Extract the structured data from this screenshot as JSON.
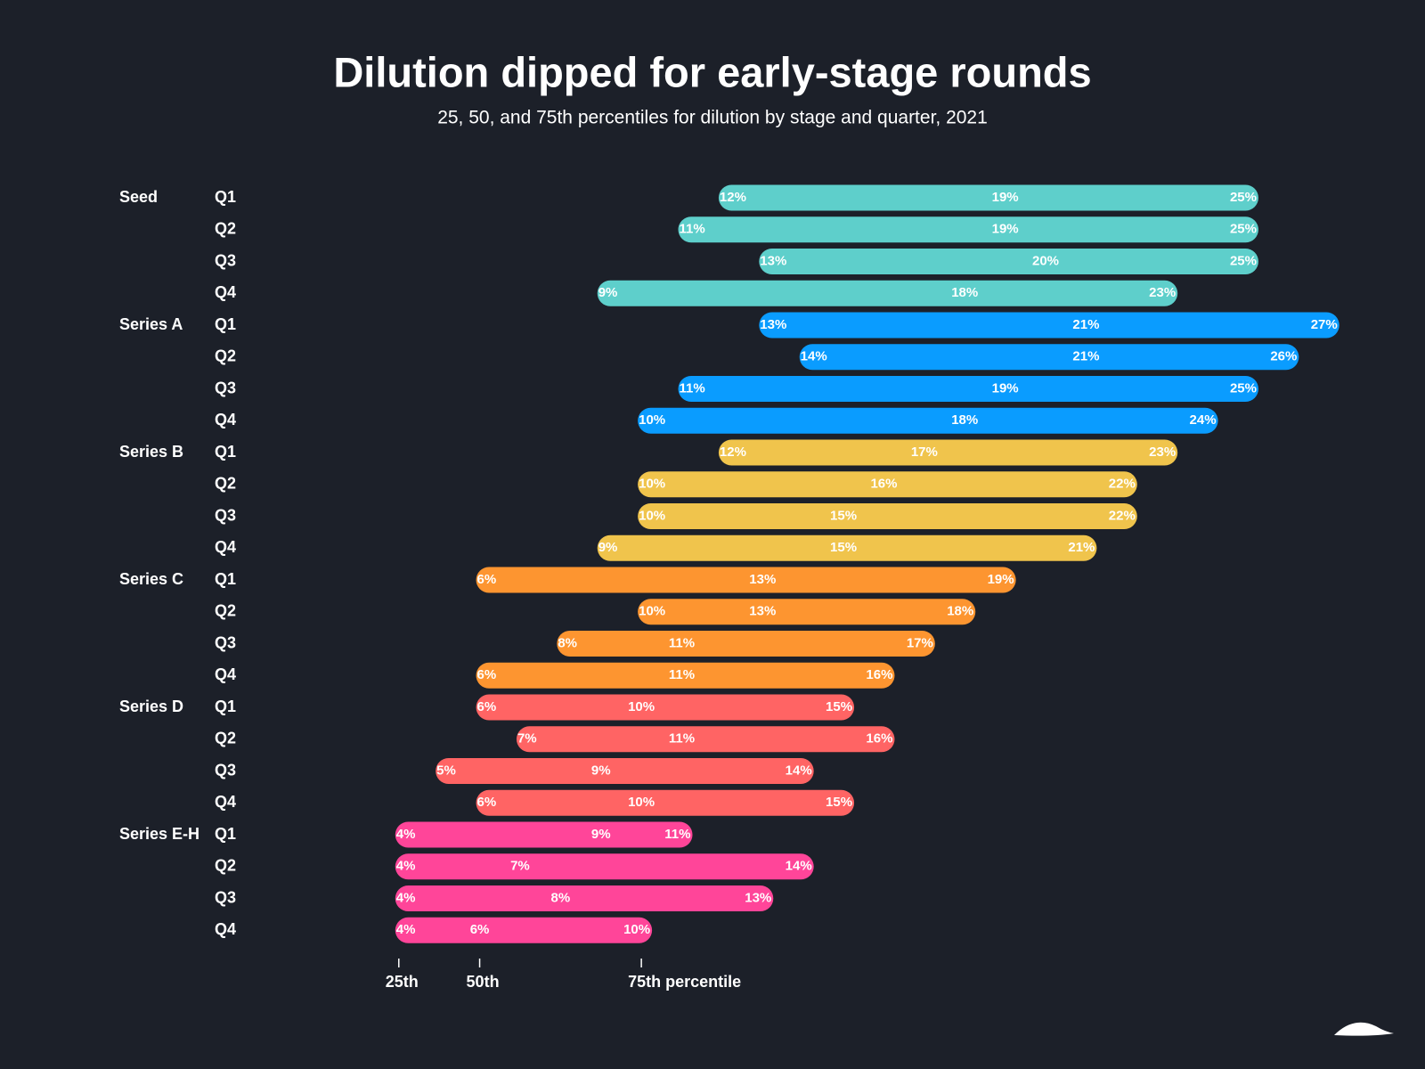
{
  "chart_data": {
    "type": "range",
    "title": "Dilution dipped for early-stage rounds",
    "subtitle": "25, 50, and 75th percentiles for dilution by stage and quarter, 2021",
    "key_labels": [
      "25th",
      "50th",
      "75th percentile"
    ],
    "series": [
      {
        "name": "Seed",
        "color": "#5ecfcb",
        "categories": [
          "Q1",
          "Q2",
          "Q3",
          "Q4"
        ],
        "values": [
          [
            12,
            19,
            25
          ],
          [
            11,
            19,
            25
          ],
          [
            13,
            20,
            25
          ],
          [
            9,
            18,
            23
          ]
        ],
        "value_labels": [
          [
            "12%",
            "19%",
            "25%"
          ],
          [
            "11%",
            "19%",
            "25%"
          ],
          [
            "13%",
            "20%",
            "25%"
          ],
          [
            "9%",
            "18%",
            "23%"
          ]
        ]
      },
      {
        "name": "Series A",
        "color": "#0a9cff",
        "categories": [
          "Q1",
          "Q2",
          "Q3",
          "Q4"
        ],
        "values": [
          [
            13,
            21,
            27
          ],
          [
            14,
            21,
            26
          ],
          [
            11,
            19,
            25
          ],
          [
            10,
            18,
            24
          ]
        ],
        "value_labels": [
          [
            "13%",
            "21%",
            "27%"
          ],
          [
            "14%",
            "21%",
            "26%"
          ],
          [
            "11%",
            "19%",
            "25%"
          ],
          [
            "10%",
            "18%",
            "24%"
          ]
        ]
      },
      {
        "name": "Series B",
        "color": "#f0c44c",
        "categories": [
          "Q1",
          "Q2",
          "Q3",
          "Q4"
        ],
        "values": [
          [
            12,
            17,
            23
          ],
          [
            10,
            16,
            22
          ],
          [
            10,
            15,
            22
          ],
          [
            9,
            15,
            21
          ]
        ],
        "value_labels": [
          [
            "12%",
            "17%",
            "23%"
          ],
          [
            "10%",
            "16%",
            "22%"
          ],
          [
            "10%",
            "15%",
            "22%"
          ],
          [
            "9%",
            "15%",
            "21%"
          ]
        ]
      },
      {
        "name": "Series C",
        "color": "#fd9530",
        "categories": [
          "Q1",
          "Q2",
          "Q3",
          "Q4"
        ],
        "values": [
          [
            6,
            13,
            19
          ],
          [
            10,
            13,
            18
          ],
          [
            8,
            11,
            17
          ],
          [
            6,
            11,
            16
          ]
        ],
        "value_labels": [
          [
            "6%",
            "13%",
            "19%"
          ],
          [
            "10%",
            "13%",
            "18%"
          ],
          [
            "8%",
            "11%",
            "17%"
          ],
          [
            "6%",
            "11%",
            "16%"
          ]
        ]
      },
      {
        "name": "Series D",
        "color": "#ff6464",
        "categories": [
          "Q1",
          "Q2",
          "Q3",
          "Q4"
        ],
        "values": [
          [
            6,
            10,
            15
          ],
          [
            7,
            11,
            16
          ],
          [
            5,
            9,
            14
          ],
          [
            6,
            10,
            15
          ]
        ],
        "value_labels": [
          [
            "6%",
            "10%",
            "15%"
          ],
          [
            "7%",
            "11%",
            "16%"
          ],
          [
            "5%",
            "9%",
            "14%"
          ],
          [
            "6%",
            "10%",
            "15%"
          ]
        ]
      },
      {
        "name": "Series E-H",
        "color": "#ff4599",
        "categories": [
          "Q1",
          "Q2",
          "Q3",
          "Q4"
        ],
        "values": [
          [
            4,
            9,
            11
          ],
          [
            4,
            7,
            14
          ],
          [
            4,
            8,
            13
          ],
          [
            4,
            6,
            10
          ]
        ],
        "value_labels": [
          [
            "4%",
            "9%",
            "11%"
          ],
          [
            "4%",
            "7%",
            "14%"
          ],
          [
            "4%",
            "8%",
            "13%"
          ],
          [
            "4%",
            "6%",
            "10%"
          ]
        ]
      }
    ]
  }
}
